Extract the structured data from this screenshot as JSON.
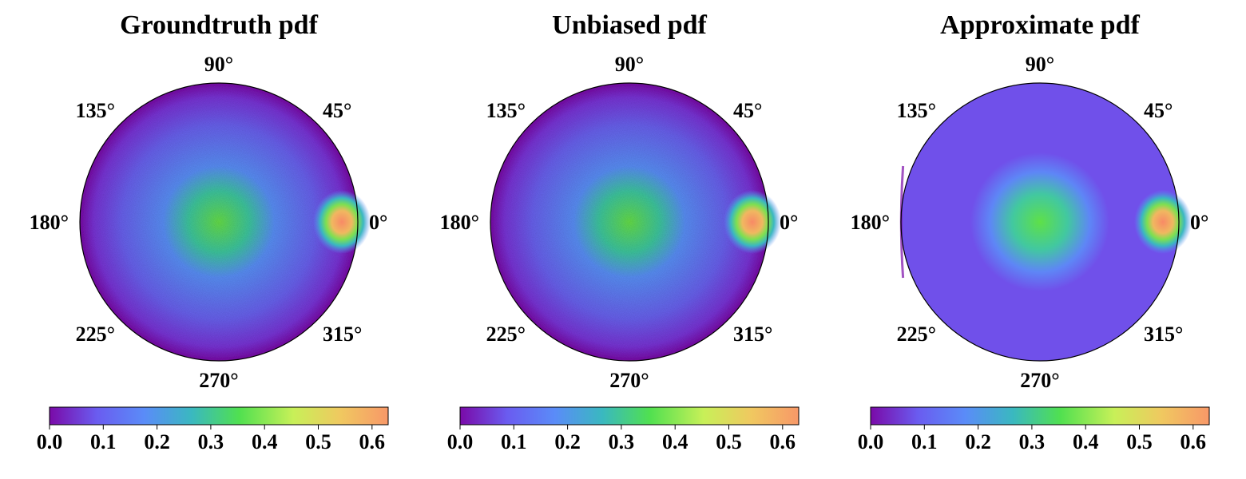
{
  "chart_data": [
    {
      "type": "heatmap",
      "projection": "polar",
      "title": "Groundtruth pdf",
      "angle_labels": [
        "0°",
        "45°",
        "90°",
        "135°",
        "180°",
        "225°",
        "270°",
        "315°"
      ],
      "colormap": "rainbow-like (purple → blue → cyan → green → yellow → orange)",
      "colorbar": {
        "range": [
          0.0,
          0.63
        ],
        "ticks": [
          "0.0",
          "0.1",
          "0.2",
          "0.3",
          "0.4",
          "0.5",
          "0.6"
        ]
      },
      "features": [
        {
          "location": "center",
          "peak_value": 0.4,
          "extent_radius_fraction": 0.35
        },
        {
          "location": "rim at 0°",
          "peak_value": 0.6,
          "extent_radius_fraction": 0.12
        }
      ],
      "background_value": 0.12,
      "edge_value": 0.05,
      "noise": true
    },
    {
      "type": "heatmap",
      "projection": "polar",
      "title": "Unbiased pdf",
      "angle_labels": [
        "0°",
        "45°",
        "90°",
        "135°",
        "180°",
        "225°",
        "270°",
        "315°"
      ],
      "colormap": "rainbow-like (purple → blue → cyan → green → yellow → orange)",
      "colorbar": {
        "range": [
          0.0,
          0.63
        ],
        "ticks": [
          "0.0",
          "0.1",
          "0.2",
          "0.3",
          "0.4",
          "0.5",
          "0.6"
        ]
      },
      "features": [
        {
          "location": "center",
          "peak_value": 0.4,
          "extent_radius_fraction": 0.35
        },
        {
          "location": "rim at 0°",
          "peak_value": 0.6,
          "extent_radius_fraction": 0.12
        }
      ],
      "background_value": 0.12,
      "edge_value": 0.05,
      "noise": true
    },
    {
      "type": "heatmap",
      "projection": "polar",
      "title": "Approximate pdf",
      "angle_labels": [
        "0°",
        "45°",
        "90°",
        "135°",
        "180°",
        "225°",
        "270°",
        "315°"
      ],
      "colormap": "rainbow-like (purple → blue → cyan → green → yellow → orange)",
      "colorbar": {
        "range": [
          0.0,
          0.63
        ],
        "ticks": [
          "0.0",
          "0.1",
          "0.2",
          "0.3",
          "0.4",
          "0.5",
          "0.6"
        ]
      },
      "features": [
        {
          "location": "center",
          "peak_value": 0.38,
          "extent_radius_fraction": 0.35
        },
        {
          "location": "rim at 0°",
          "peak_value": 0.6,
          "extent_radius_fraction": 0.12
        }
      ],
      "background_value": 0.08,
      "edge_value": 0.08,
      "noise": false
    }
  ],
  "colors": {
    "colormap_stops": [
      "#7a0aa8",
      "#6a5cf0",
      "#5a8cf8",
      "#3ab8c0",
      "#50e050",
      "#c8f058",
      "#f0c860",
      "#f89868"
    ],
    "rim_stroke": "#000000"
  }
}
